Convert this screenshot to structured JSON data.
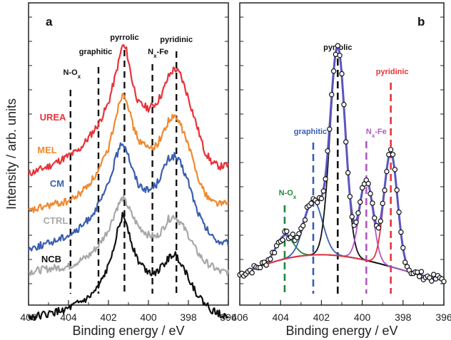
{
  "chart_data": [
    {
      "panel": "a",
      "type": "line",
      "xlabel": "Binding energy / eV",
      "ylabel": "Intensity / arb. units",
      "xlim": [
        406,
        396
      ],
      "x_reversed": true,
      "xticks": [
        406,
        404,
        402,
        400,
        398,
        396
      ],
      "y_ticks_labeled": false,
      "grid": false,
      "reference_lines": [
        {
          "x": 403.9,
          "label": "N-O",
          "sub": "x"
        },
        {
          "x": 402.5,
          "label": "graphitic",
          "sub": ""
        },
        {
          "x": 401.2,
          "label": "pyrrolic",
          "sub": ""
        },
        {
          "x": 399.8,
          "label": "N",
          "sub": "x",
          "tail": "-Fe"
        },
        {
          "x": 398.6,
          "label": "pyridinic",
          "sub": ""
        }
      ],
      "series": [
        {
          "name": "UREA",
          "color": "#e8333a",
          "x": [
            406,
            405,
            404,
            403.5,
            403,
            402.5,
            402,
            401.6,
            401.3,
            401.1,
            400.8,
            400.5,
            400.0,
            399.6,
            399.3,
            399.0,
            398.7,
            398.4,
            398.0,
            397.6,
            397.2,
            396.8,
            396.4,
            396
          ],
          "values": [
            0.38,
            0.45,
            0.55,
            0.6,
            0.72,
            0.85,
            1.05,
            1.35,
            1.6,
            1.55,
            1.25,
            1.05,
            1.0,
            1.05,
            1.15,
            1.3,
            1.38,
            1.32,
            1.1,
            0.85,
            0.6,
            0.48,
            0.45,
            0.46
          ]
        },
        {
          "name": "MEL",
          "color": "#f08a30",
          "x": [
            406,
            405,
            404,
            403.5,
            403,
            402.5,
            402,
            401.6,
            401.3,
            401.1,
            400.8,
            400.5,
            400.0,
            399.6,
            399.3,
            399.0,
            398.7,
            398.4,
            398.0,
            397.6,
            397.2,
            396.8,
            396.4,
            396
          ],
          "values": [
            0.02,
            0.08,
            0.12,
            0.18,
            0.28,
            0.4,
            0.62,
            0.95,
            1.15,
            1.1,
            0.85,
            0.7,
            0.62,
            0.65,
            0.75,
            0.88,
            0.92,
            0.85,
            0.65,
            0.4,
            0.2,
            0.12,
            0.1,
            0.1
          ]
        },
        {
          "name": "CM",
          "color": "#3a5fb0",
          "x": [
            406,
            405,
            404,
            403.5,
            403,
            402.5,
            402,
            401.6,
            401.3,
            401.1,
            400.8,
            400.5,
            400.0,
            399.6,
            399.3,
            399.0,
            398.7,
            398.4,
            398.0,
            397.6,
            397.2,
            396.8,
            396.4,
            396
          ],
          "values": [
            -0.33,
            -0.28,
            -0.2,
            -0.15,
            -0.05,
            0.08,
            0.28,
            0.55,
            0.68,
            0.62,
            0.42,
            0.28,
            0.22,
            0.28,
            0.4,
            0.52,
            0.55,
            0.48,
            0.3,
            0.05,
            -0.12,
            -0.22,
            -0.27,
            -0.28
          ]
        },
        {
          "name": "CTRL",
          "color": "#a8a8a8",
          "x": [
            406,
            405,
            404,
            403.5,
            403,
            402.5,
            402,
            401.6,
            401.3,
            401.1,
            400.8,
            400.5,
            400.0,
            399.6,
            399.3,
            399.0,
            398.7,
            398.4,
            398.0,
            397.6,
            397.2,
            396.8,
            396.4,
            396
          ],
          "values": [
            -0.55,
            -0.52,
            -0.5,
            -0.45,
            -0.4,
            -0.3,
            -0.15,
            0.05,
            0.15,
            0.1,
            -0.02,
            -0.12,
            -0.2,
            -0.22,
            -0.15,
            -0.05,
            -0.02,
            -0.08,
            -0.2,
            -0.35,
            -0.45,
            -0.5,
            -0.55,
            -0.55
          ]
        },
        {
          "name": "NCB",
          "color": "#111111",
          "x": [
            406,
            405,
            404,
            403.5,
            403,
            402.5,
            402,
            401.6,
            401.3,
            401.1,
            400.8,
            400.5,
            400.0,
            399.6,
            399.3,
            399.0,
            398.7,
            398.4,
            398.0,
            397.6,
            397.2,
            396.8,
            396.4,
            396
          ],
          "values": [
            -0.98,
            -0.95,
            -0.9,
            -0.85,
            -0.8,
            -0.7,
            -0.5,
            -0.2,
            -0.02,
            -0.08,
            -0.3,
            -0.45,
            -0.55,
            -0.55,
            -0.5,
            -0.42,
            -0.38,
            -0.45,
            -0.6,
            -0.75,
            -0.85,
            -0.92,
            -0.95,
            -0.97
          ]
        }
      ]
    },
    {
      "panel": "b",
      "type": "line",
      "xlabel": "Binding energy / eV",
      "xlim": [
        406,
        396
      ],
      "x_reversed": true,
      "xticks": [
        406,
        404,
        402,
        400,
        398,
        396
      ],
      "y_ticks_labeled": false,
      "grid": false,
      "reference_lines": [
        {
          "x": 403.8,
          "label": "N-O",
          "sub": "x",
          "color": "#1f8a3b"
        },
        {
          "x": 402.4,
          "label": "graphitic",
          "sub": "",
          "color": "#3a5fb0"
        },
        {
          "x": 401.2,
          "label": "pyrrolic",
          "sub": "",
          "color": "#111111"
        },
        {
          "x": 399.8,
          "label": "N",
          "sub": "x",
          "tail": "-Fe",
          "color": "#b259c6"
        },
        {
          "x": 398.6,
          "label": "pyridinic",
          "sub": "",
          "color": "#e8333a"
        }
      ],
      "background": {
        "color": "#2a2f7a"
      },
      "components": [
        {
          "label": "N-Ox",
          "center": 403.8,
          "height": 0.18,
          "width": 0.7,
          "color": "#1f8a3b"
        },
        {
          "label": "graphitic",
          "center": 402.4,
          "height": 0.42,
          "width": 0.75,
          "color": "#3a5fb0"
        },
        {
          "label": "pyrrolic",
          "center": 401.2,
          "height": 1.6,
          "width": 0.62,
          "color": "#111111"
        },
        {
          "label": "Nx-Fe",
          "center": 399.8,
          "height": 0.62,
          "width": 0.55,
          "color": "#b259c6"
        },
        {
          "label": "pyridinic",
          "center": 398.6,
          "height": 0.88,
          "width": 0.55,
          "color": "#e8333a"
        }
      ],
      "envelope": {
        "color": "#5b55c0"
      },
      "points": {
        "step": 0.1,
        "style": "open-circle",
        "color": "#111111"
      }
    }
  ]
}
